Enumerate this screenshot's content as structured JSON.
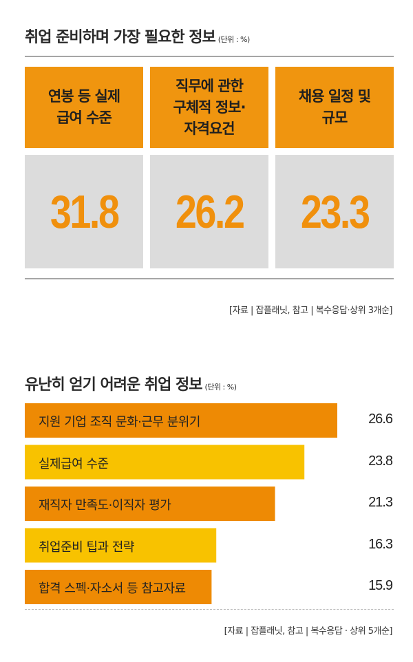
{
  "section1": {
    "title": "취업 준비하며 가장 필요한 정보",
    "unit": "(단위 : %)",
    "cards": [
      {
        "label_lines": [
          "연봉 등 실제",
          "급여 수준"
        ],
        "value": "31.8"
      },
      {
        "label_lines": [
          "직무에 관한",
          "구체적 정보·",
          "자격요건"
        ],
        "value": "26.2"
      },
      {
        "label_lines": [
          "채용 일정 및",
          "규모"
        ],
        "value": "23.3"
      }
    ],
    "source": "[자료 | 잡플래닛, 참고 | 복수응답·상위 3개순]"
  },
  "section2": {
    "title": "유난히 얻기 어려운 취업 정보",
    "unit": "(단위 : %)",
    "source": "[자료 | 잡플래닛, 참고 | 복수응답 · 상위 5개순]"
  },
  "colors": {
    "orange": "#ee8a04",
    "yellow": "#f8c200",
    "card_orange": "#f0950f",
    "card_gray": "#dcdcdc",
    "value_orange": "#f0900d"
  },
  "chart_data": [
    {
      "type": "table",
      "title": "취업 준비하며 가장 필요한 정보",
      "unit": "%",
      "categories": [
        "연봉 등 실제 급여 수준",
        "직무에 관한 구체적 정보·자격요건",
        "채용 일정 및 규모"
      ],
      "values": [
        31.8,
        26.2,
        23.3
      ]
    },
    {
      "type": "bar",
      "orientation": "horizontal",
      "title": "유난히 얻기 어려운 취업 정보",
      "unit": "%",
      "categories": [
        "지원 기업 조직 문화·근무 분위기",
        "실제급여 수준",
        "재직자 만족도·이직자 평가",
        "취업준비 팁과 전략",
        "합격 스펙·자소서 등 참고자료"
      ],
      "values": [
        26.6,
        23.8,
        21.3,
        16.3,
        15.9
      ],
      "value_labels": [
        "26.6",
        "23.8",
        "21.3",
        "16.3",
        "15.9"
      ],
      "bar_colors": [
        "#ee8a04",
        "#f8c200",
        "#ee8a04",
        "#f8c200",
        "#ee8a04"
      ],
      "xlim": [
        0,
        26.6
      ]
    }
  ]
}
